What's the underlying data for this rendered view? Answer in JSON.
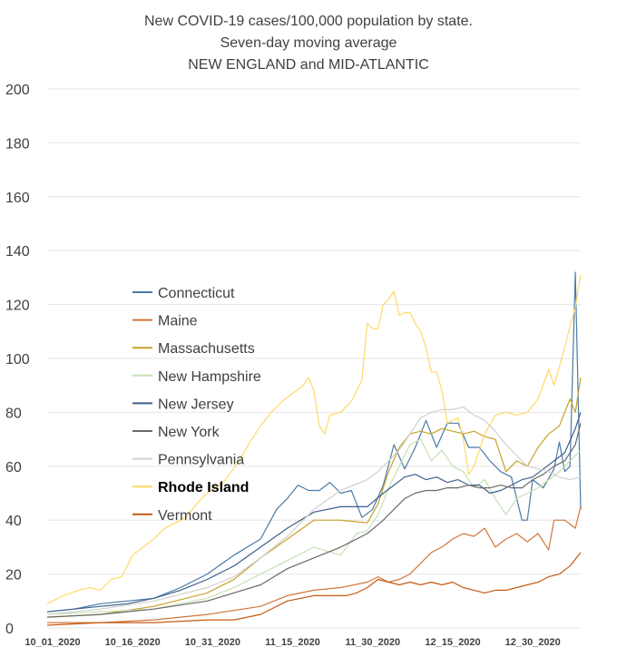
{
  "chart_data": {
    "type": "line",
    "title_lines": [
      "New COVID-19 cases/100,000 population by state.",
      "Seven-day moving average",
      "NEW ENGLAND and MID-ATLANTIC"
    ],
    "xlabel": "",
    "ylabel": "",
    "ylim": [
      0,
      200
    ],
    "yticks": [
      "0",
      "20",
      "40",
      "60",
      "80",
      "100",
      "120",
      "140",
      "160",
      "180",
      "200"
    ],
    "x_tick_labels": [
      "10_01_2020",
      "10_16_2020",
      "10_31_2020",
      "11_15_2020",
      "11_30_2020",
      "12_15_2020",
      "12_30_2020"
    ],
    "x_tick_day_offsets": [
      0,
      15,
      30,
      45,
      60,
      75,
      90
    ],
    "x_range_days": [
      0,
      100
    ],
    "grid": "horizontal",
    "legend_position": "center-left",
    "series": [
      {
        "name": "Connecticut",
        "color": "#4a7ba7",
        "bold": false,
        "points": [
          [
            0,
            6
          ],
          [
            5,
            7
          ],
          [
            10,
            9
          ],
          [
            15,
            10
          ],
          [
            20,
            11
          ],
          [
            25,
            15
          ],
          [
            30,
            20
          ],
          [
            35,
            27
          ],
          [
            40,
            33
          ],
          [
            43,
            44
          ],
          [
            45,
            48
          ],
          [
            47,
            53
          ],
          [
            49,
            51
          ],
          [
            51,
            51
          ],
          [
            53,
            54
          ],
          [
            55,
            50
          ],
          [
            57,
            51
          ],
          [
            59,
            41
          ],
          [
            61,
            44
          ],
          [
            63,
            53
          ],
          [
            65,
            68
          ],
          [
            67,
            59
          ],
          [
            69,
            67
          ],
          [
            71,
            77
          ],
          [
            73,
            67
          ],
          [
            75,
            76
          ],
          [
            77,
            76
          ],
          [
            79,
            67
          ],
          [
            81,
            67
          ],
          [
            83,
            62
          ],
          [
            85,
            58
          ],
          [
            87,
            56
          ],
          [
            89,
            40
          ],
          [
            90,
            40
          ],
          [
            91,
            55
          ],
          [
            93,
            52
          ],
          [
            95,
            59
          ],
          [
            96,
            69
          ],
          [
            97,
            58
          ],
          [
            98,
            60
          ],
          [
            99,
            132
          ],
          [
            100,
            44
          ]
        ]
      },
      {
        "name": "Maine",
        "color": "#d4763b",
        "bold": false,
        "points": [
          [
            0,
            2
          ],
          [
            10,
            2
          ],
          [
            20,
            3
          ],
          [
            30,
            5
          ],
          [
            40,
            8
          ],
          [
            45,
            12
          ],
          [
            50,
            14
          ],
          [
            55,
            15
          ],
          [
            60,
            17
          ],
          [
            62,
            19
          ],
          [
            64,
            17
          ],
          [
            66,
            18
          ],
          [
            68,
            20
          ],
          [
            70,
            24
          ],
          [
            72,
            28
          ],
          [
            74,
            30
          ],
          [
            76,
            33
          ],
          [
            78,
            35
          ],
          [
            80,
            34
          ],
          [
            82,
            37
          ],
          [
            84,
            30
          ],
          [
            86,
            33
          ],
          [
            88,
            35
          ],
          [
            90,
            32
          ],
          [
            92,
            35
          ],
          [
            94,
            29
          ],
          [
            95,
            40
          ],
          [
            97,
            40
          ],
          [
            99,
            37
          ],
          [
            100,
            45
          ]
        ]
      },
      {
        "name": "Massachusetts",
        "color": "#c9a227",
        "bold": false,
        "points": [
          [
            0,
            4
          ],
          [
            10,
            5
          ],
          [
            20,
            8
          ],
          [
            30,
            13
          ],
          [
            35,
            18
          ],
          [
            40,
            26
          ],
          [
            45,
            33
          ],
          [
            50,
            40
          ],
          [
            55,
            40
          ],
          [
            60,
            39
          ],
          [
            62,
            46
          ],
          [
            64,
            58
          ],
          [
            66,
            67
          ],
          [
            68,
            72
          ],
          [
            70,
            73
          ],
          [
            72,
            72
          ],
          [
            74,
            74
          ],
          [
            76,
            73
          ],
          [
            78,
            72
          ],
          [
            80,
            73
          ],
          [
            82,
            71
          ],
          [
            84,
            70
          ],
          [
            86,
            58
          ],
          [
            88,
            62
          ],
          [
            90,
            60
          ],
          [
            92,
            67
          ],
          [
            94,
            72
          ],
          [
            96,
            75
          ],
          [
            98,
            85
          ],
          [
            99,
            80
          ],
          [
            100,
            93
          ]
        ]
      },
      {
        "name": "New Hampshire",
        "color": "#c6e0b4",
        "bold": false,
        "points": [
          [
            0,
            5
          ],
          [
            10,
            6
          ],
          [
            20,
            7
          ],
          [
            30,
            11
          ],
          [
            35,
            15
          ],
          [
            40,
            20
          ],
          [
            45,
            25
          ],
          [
            50,
            30
          ],
          [
            55,
            27
          ],
          [
            58,
            35
          ],
          [
            60,
            36
          ],
          [
            62,
            42
          ],
          [
            64,
            52
          ],
          [
            66,
            60
          ],
          [
            68,
            68
          ],
          [
            70,
            70
          ],
          [
            72,
            62
          ],
          [
            74,
            66
          ],
          [
            76,
            60
          ],
          [
            78,
            58
          ],
          [
            80,
            52
          ],
          [
            82,
            55
          ],
          [
            84,
            48
          ],
          [
            86,
            42
          ],
          [
            88,
            48
          ],
          [
            90,
            50
          ],
          [
            92,
            52
          ],
          [
            94,
            55
          ],
          [
            96,
            58
          ],
          [
            98,
            62
          ],
          [
            100,
            66
          ]
        ]
      },
      {
        "name": "New Jersey",
        "color": "#3d5f8a",
        "bold": false,
        "points": [
          [
            0,
            6
          ],
          [
            5,
            7
          ],
          [
            10,
            8
          ],
          [
            15,
            9
          ],
          [
            20,
            11
          ],
          [
            25,
            14
          ],
          [
            30,
            18
          ],
          [
            35,
            23
          ],
          [
            40,
            30
          ],
          [
            45,
            37
          ],
          [
            50,
            43
          ],
          [
            55,
            45
          ],
          [
            60,
            45
          ],
          [
            63,
            50
          ],
          [
            65,
            53
          ],
          [
            67,
            56
          ],
          [
            69,
            57
          ],
          [
            71,
            55
          ],
          [
            73,
            56
          ],
          [
            75,
            54
          ],
          [
            77,
            55
          ],
          [
            79,
            53
          ],
          [
            81,
            53
          ],
          [
            83,
            50
          ],
          [
            85,
            51
          ],
          [
            87,
            53
          ],
          [
            89,
            55
          ],
          [
            91,
            56
          ],
          [
            93,
            59
          ],
          [
            95,
            62
          ],
          [
            97,
            65
          ],
          [
            99,
            74
          ],
          [
            100,
            80
          ]
        ]
      },
      {
        "name": "New York",
        "color": "#6a6a6a",
        "bold": false,
        "points": [
          [
            0,
            4
          ],
          [
            10,
            5
          ],
          [
            20,
            7
          ],
          [
            30,
            10
          ],
          [
            40,
            16
          ],
          [
            45,
            22
          ],
          [
            50,
            26
          ],
          [
            55,
            30
          ],
          [
            60,
            35
          ],
          [
            63,
            40
          ],
          [
            65,
            44
          ],
          [
            67,
            48
          ],
          [
            69,
            50
          ],
          [
            71,
            51
          ],
          [
            73,
            51
          ],
          [
            75,
            52
          ],
          [
            77,
            52
          ],
          [
            79,
            53
          ],
          [
            81,
            52
          ],
          [
            83,
            52
          ],
          [
            85,
            53
          ],
          [
            87,
            52
          ],
          [
            89,
            52
          ],
          [
            91,
            55
          ],
          [
            93,
            57
          ],
          [
            95,
            60
          ],
          [
            97,
            62
          ],
          [
            99,
            68
          ],
          [
            100,
            76
          ]
        ]
      },
      {
        "name": "Pennsylvania",
        "color": "#d0d0d0",
        "bold": false,
        "points": [
          [
            0,
            5
          ],
          [
            10,
            7
          ],
          [
            20,
            10
          ],
          [
            30,
            15
          ],
          [
            35,
            19
          ],
          [
            40,
            26
          ],
          [
            45,
            34
          ],
          [
            50,
            44
          ],
          [
            55,
            51
          ],
          [
            60,
            55
          ],
          [
            62,
            58
          ],
          [
            64,
            62
          ],
          [
            66,
            66
          ],
          [
            68,
            72
          ],
          [
            70,
            78
          ],
          [
            72,
            80
          ],
          [
            74,
            81
          ],
          [
            76,
            81
          ],
          [
            78,
            82
          ],
          [
            80,
            79
          ],
          [
            82,
            77
          ],
          [
            84,
            73
          ],
          [
            86,
            68
          ],
          [
            88,
            64
          ],
          [
            90,
            60
          ],
          [
            92,
            59
          ],
          [
            94,
            58
          ],
          [
            96,
            56
          ],
          [
            98,
            55
          ],
          [
            100,
            56
          ]
        ]
      },
      {
        "name": "Rhode Island",
        "color": "#ffd966",
        "bold": true,
        "points": [
          [
            0,
            9
          ],
          [
            3,
            12
          ],
          [
            6,
            14
          ],
          [
            8,
            15
          ],
          [
            10,
            14
          ],
          [
            12,
            18
          ],
          [
            14,
            19
          ],
          [
            16,
            27
          ],
          [
            18,
            30
          ],
          [
            20,
            33
          ],
          [
            22,
            37
          ],
          [
            24,
            39
          ],
          [
            26,
            41
          ],
          [
            28,
            46
          ],
          [
            30,
            50
          ],
          [
            33,
            54
          ],
          [
            36,
            62
          ],
          [
            38,
            69
          ],
          [
            40,
            75
          ],
          [
            42,
            80
          ],
          [
            44,
            84
          ],
          [
            46,
            87
          ],
          [
            48,
            90
          ],
          [
            49,
            93
          ],
          [
            50,
            88
          ],
          [
            51,
            75
          ],
          [
            52,
            72
          ],
          [
            53,
            79
          ],
          [
            55,
            80
          ],
          [
            57,
            84
          ],
          [
            59,
            92
          ],
          [
            60,
            113
          ],
          [
            61,
            111
          ],
          [
            62,
            111
          ],
          [
            63,
            120
          ],
          [
            64,
            122
          ],
          [
            65,
            125
          ],
          [
            66,
            116
          ],
          [
            67,
            117
          ],
          [
            68,
            117
          ],
          [
            69,
            113
          ],
          [
            70,
            110
          ],
          [
            71,
            104
          ],
          [
            72,
            95
          ],
          [
            73,
            95
          ],
          [
            74,
            88
          ],
          [
            75,
            76
          ],
          [
            77,
            78
          ],
          [
            78,
            70
          ],
          [
            79,
            57
          ],
          [
            80,
            60
          ],
          [
            82,
            72
          ],
          [
            84,
            79
          ],
          [
            86,
            80
          ],
          [
            88,
            79
          ],
          [
            90,
            80
          ],
          [
            92,
            85
          ],
          [
            94,
            96
          ],
          [
            95,
            90
          ],
          [
            96,
            97
          ],
          [
            97,
            104
          ],
          [
            98,
            112
          ],
          [
            99,
            119
          ],
          [
            100,
            131
          ]
        ]
      },
      {
        "name": "Vermont",
        "color": "#c55a11",
        "bold": false,
        "points": [
          [
            0,
            1
          ],
          [
            10,
            2
          ],
          [
            20,
            2
          ],
          [
            30,
            3
          ],
          [
            35,
            3
          ],
          [
            40,
            5
          ],
          [
            45,
            10
          ],
          [
            50,
            12
          ],
          [
            54,
            12
          ],
          [
            56,
            12
          ],
          [
            58,
            13
          ],
          [
            60,
            15
          ],
          [
            62,
            18
          ],
          [
            64,
            17
          ],
          [
            66,
            16
          ],
          [
            68,
            17
          ],
          [
            70,
            16
          ],
          [
            72,
            17
          ],
          [
            74,
            16
          ],
          [
            76,
            17
          ],
          [
            78,
            15
          ],
          [
            80,
            14
          ],
          [
            82,
            13
          ],
          [
            84,
            14
          ],
          [
            86,
            14
          ],
          [
            88,
            15
          ],
          [
            90,
            16
          ],
          [
            92,
            17
          ],
          [
            94,
            19
          ],
          [
            96,
            20
          ],
          [
            98,
            23
          ],
          [
            100,
            28
          ]
        ]
      }
    ]
  }
}
